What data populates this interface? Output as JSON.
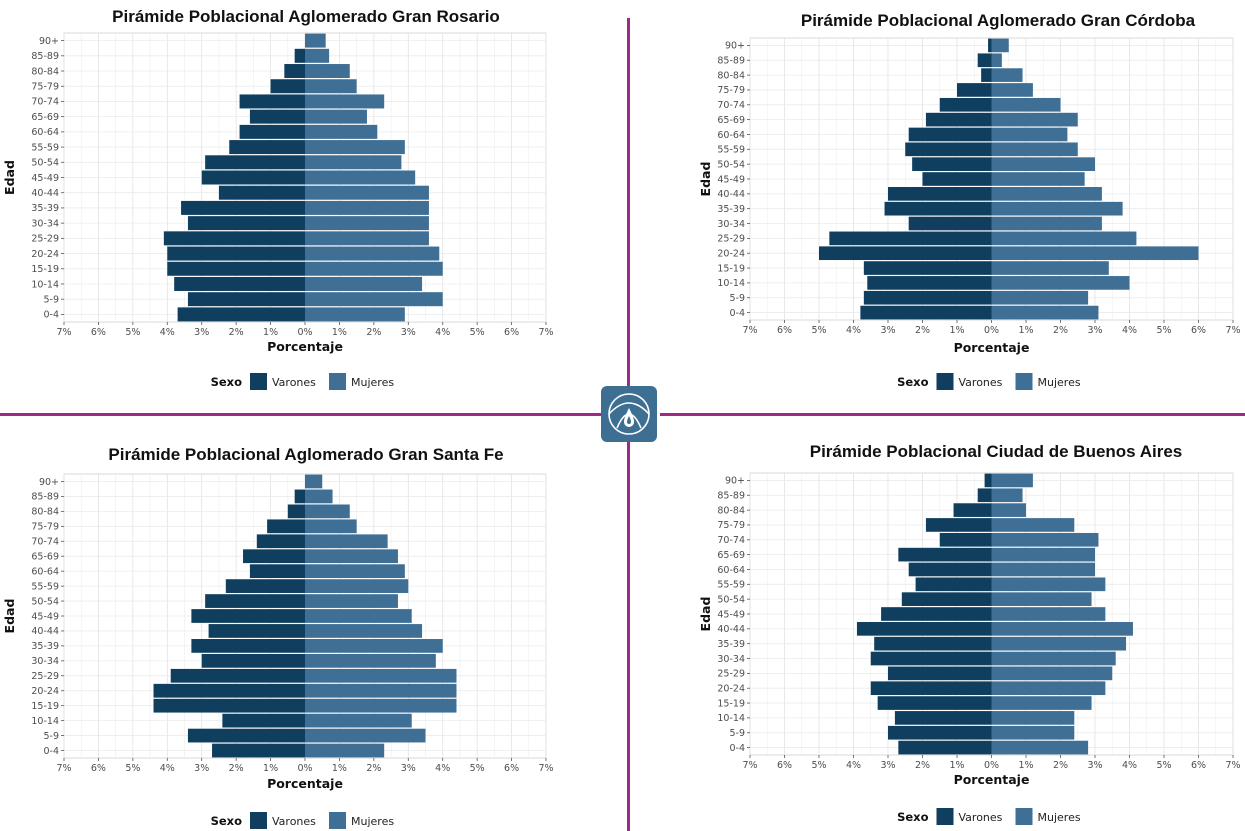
{
  "colors": {
    "varones": "#0f3e5e",
    "mujeres": "#3f6f95",
    "divider": "#9c2a86",
    "logo": "#3d6f93"
  },
  "logo": {
    "icon": "drop-emblem-icon"
  },
  "chart_data": [
    {
      "type": "bar",
      "title": "Pirámide Poblacional Aglomerado Gran Rosario",
      "xlabel": "Porcentaje",
      "ylabel": "Edad",
      "legend_title": "Sexo",
      "legend_placement": "bottom",
      "xlim": [
        -7,
        7
      ],
      "x_ticks": [
        "7%",
        "6%",
        "5%",
        "4%",
        "3%",
        "2%",
        "1%",
        "0%",
        "1%",
        "2%",
        "3%",
        "4%",
        "5%",
        "6%",
        "7%"
      ],
      "grid": true,
      "categories": [
        "0-4",
        "5-9",
        "10-14",
        "15-19",
        "20-24",
        "25-29",
        "30-34",
        "35-39",
        "40-44",
        "45-49",
        "50-54",
        "55-59",
        "60-64",
        "65-69",
        "70-74",
        "75-79",
        "80-84",
        "85-89",
        "90+"
      ],
      "series": [
        {
          "name": "Varones",
          "values": [
            3.7,
            3.4,
            3.8,
            4.0,
            4.0,
            4.1,
            3.4,
            3.6,
            2.5,
            3.0,
            2.9,
            2.2,
            1.9,
            1.6,
            1.9,
            1.0,
            0.6,
            0.3,
            0.0
          ]
        },
        {
          "name": "Mujeres",
          "values": [
            2.9,
            4.0,
            3.4,
            4.0,
            3.9,
            3.6,
            3.6,
            3.6,
            3.6,
            3.2,
            2.8,
            2.9,
            2.1,
            1.8,
            2.3,
            1.5,
            1.3,
            0.7,
            0.6
          ]
        }
      ]
    },
    {
      "type": "bar",
      "title": "Pirámide Poblacional Aglomerado Gran Córdoba",
      "xlabel": "Porcentaje",
      "ylabel": "Edad",
      "legend_title": "Sexo",
      "legend_placement": "bottom",
      "xlim": [
        -7,
        7
      ],
      "x_ticks": [
        "7%",
        "6%",
        "5%",
        "4%",
        "3%",
        "2%",
        "1%",
        "0%",
        "1%",
        "2%",
        "3%",
        "4%",
        "5%",
        "6%",
        "7%"
      ],
      "grid": true,
      "categories": [
        "0-4",
        "5-9",
        "10-14",
        "15-19",
        "20-24",
        "25-29",
        "30-34",
        "35-39",
        "40-44",
        "45-49",
        "50-54",
        "55-59",
        "60-64",
        "65-69",
        "70-74",
        "75-79",
        "80-84",
        "85-89",
        "90+"
      ],
      "series": [
        {
          "name": "Varones",
          "values": [
            3.8,
            3.7,
            3.6,
            3.7,
            5.0,
            4.7,
            2.4,
            3.1,
            3.0,
            2.0,
            2.3,
            2.5,
            2.4,
            1.9,
            1.5,
            1.0,
            0.3,
            0.4,
            0.1
          ]
        },
        {
          "name": "Mujeres",
          "values": [
            3.1,
            2.8,
            4.0,
            3.4,
            6.0,
            4.2,
            3.2,
            3.8,
            3.2,
            2.7,
            3.0,
            2.5,
            2.2,
            2.5,
            2.0,
            1.2,
            0.9,
            0.3,
            0.5
          ]
        }
      ]
    },
    {
      "type": "bar",
      "title": "Pirámide Poblacional Aglomerado Gran Santa Fe",
      "xlabel": "Porcentaje",
      "ylabel": "Edad",
      "legend_title": "Sexo",
      "legend_placement": "bottom",
      "xlim": [
        -7,
        7
      ],
      "x_ticks": [
        "7%",
        "6%",
        "5%",
        "4%",
        "3%",
        "2%",
        "1%",
        "0%",
        "1%",
        "2%",
        "3%",
        "4%",
        "5%",
        "6%",
        "7%"
      ],
      "grid": true,
      "categories": [
        "0-4",
        "5-9",
        "10-14",
        "15-19",
        "20-24",
        "25-29",
        "30-34",
        "35-39",
        "40-44",
        "45-49",
        "50-54",
        "55-59",
        "60-64",
        "65-69",
        "70-74",
        "75-79",
        "80-84",
        "85-89",
        "90+"
      ],
      "series": [
        {
          "name": "Varones",
          "values": [
            2.7,
            3.4,
            2.4,
            4.4,
            4.4,
            3.9,
            3.0,
            3.3,
            2.8,
            3.3,
            2.9,
            2.3,
            1.6,
            1.8,
            1.4,
            1.1,
            0.5,
            0.3,
            0.0
          ]
        },
        {
          "name": "Mujeres",
          "values": [
            2.3,
            3.5,
            3.1,
            4.4,
            4.4,
            4.4,
            3.8,
            4.0,
            3.4,
            3.1,
            2.7,
            3.0,
            2.9,
            2.7,
            2.4,
            1.5,
            1.3,
            0.8,
            0.5
          ]
        }
      ]
    },
    {
      "type": "bar",
      "title": "Pirámide Poblacional Ciudad de Buenos Aires",
      "xlabel": "Porcentaje",
      "ylabel": "Edad",
      "legend_title": "Sexo",
      "legend_placement": "bottom",
      "xlim": [
        -7,
        7
      ],
      "x_ticks": [
        "7%",
        "6%",
        "5%",
        "4%",
        "3%",
        "2%",
        "1%",
        "0%",
        "1%",
        "2%",
        "3%",
        "4%",
        "5%",
        "6%",
        "7%"
      ],
      "grid": true,
      "categories": [
        "0-4",
        "5-9",
        "10-14",
        "15-19",
        "20-24",
        "25-29",
        "30-34",
        "35-39",
        "40-44",
        "45-49",
        "50-54",
        "55-59",
        "60-64",
        "65-69",
        "70-74",
        "75-79",
        "80-84",
        "85-89",
        "90+"
      ],
      "series": [
        {
          "name": "Varones",
          "values": [
            2.7,
            3.0,
            2.8,
            3.3,
            3.5,
            3.0,
            3.5,
            3.4,
            3.9,
            3.2,
            2.6,
            2.2,
            2.4,
            2.7,
            1.5,
            1.9,
            1.1,
            0.4,
            0.2
          ]
        },
        {
          "name": "Mujeres",
          "values": [
            2.8,
            2.4,
            2.4,
            2.9,
            3.3,
            3.5,
            3.6,
            3.9,
            4.1,
            3.3,
            2.9,
            3.3,
            3.0,
            3.0,
            3.1,
            2.4,
            1.0,
            0.9,
            1.2
          ]
        }
      ]
    }
  ]
}
